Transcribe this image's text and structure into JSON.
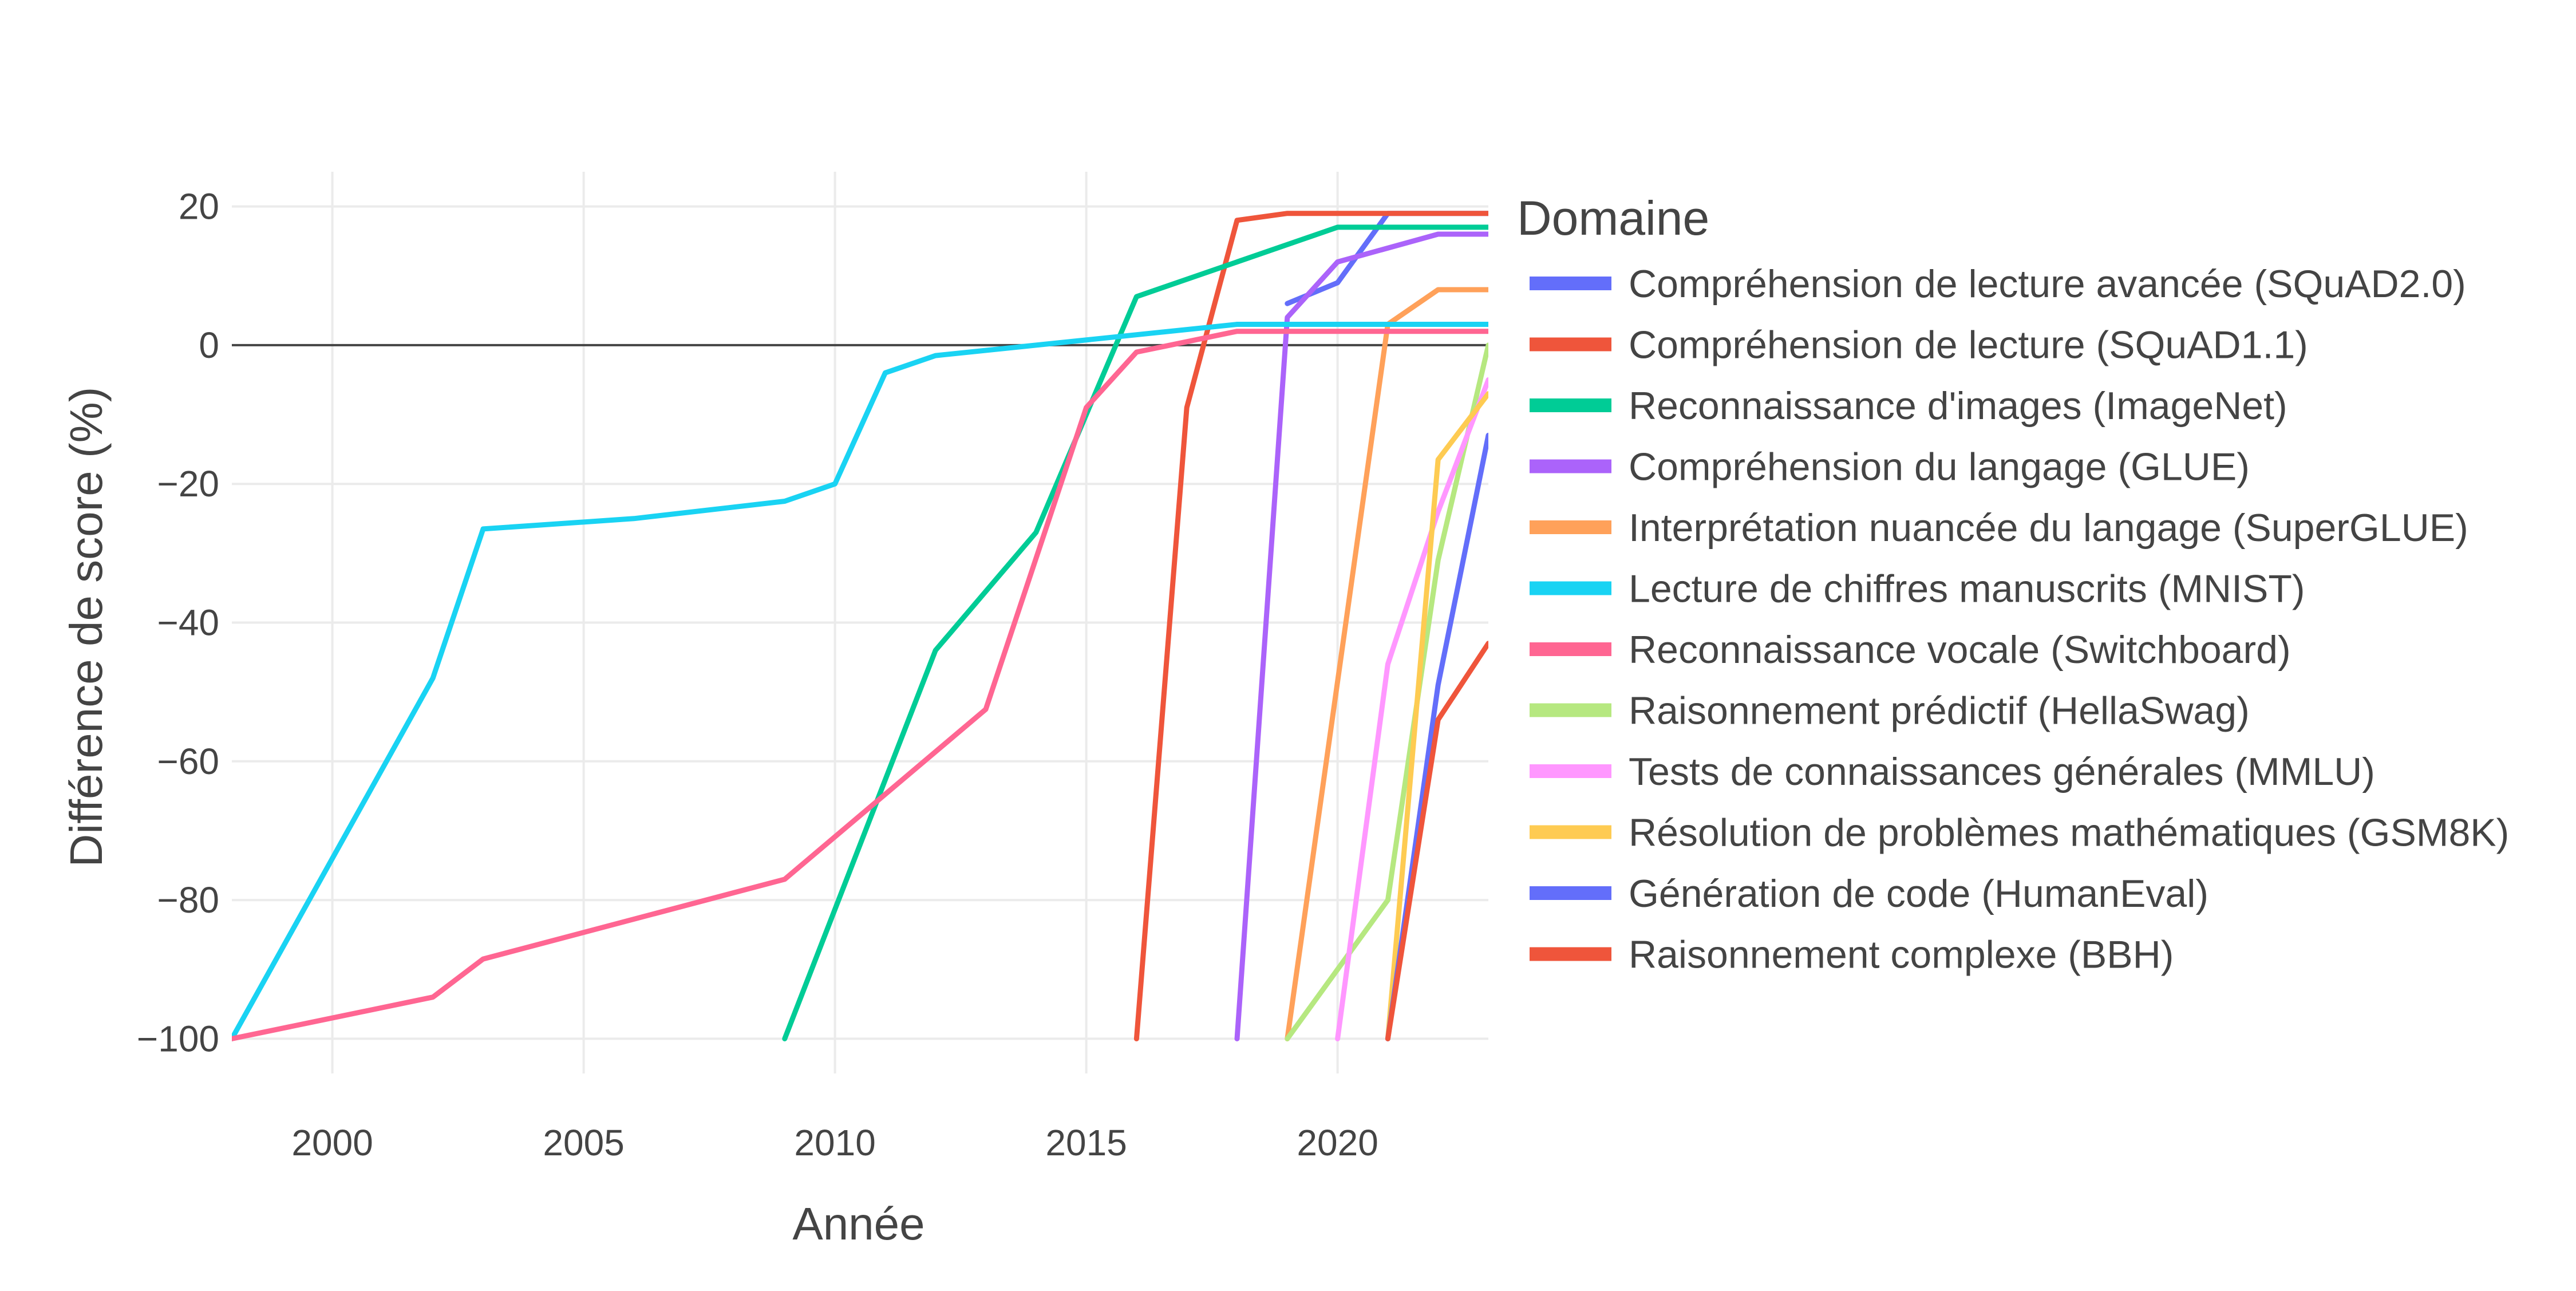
{
  "chart_data": {
    "type": "line",
    "title": "",
    "xlabel": "Année",
    "ylabel": "Différence de score (%)",
    "xlim": [
      1998,
      2023
    ],
    "ylim": [
      -105,
      25
    ],
    "x_ticks": [
      2000,
      2005,
      2010,
      2015,
      2020
    ],
    "y_ticks": [
      20,
      0,
      -20,
      -40,
      -60,
      -80,
      -100
    ],
    "y_tick_labels": [
      "20",
      "0",
      "−20",
      "−40",
      "−60",
      "−80",
      "−100"
    ],
    "zero_line": true,
    "grid": true,
    "legend": {
      "title": "Domaine",
      "placement": "right"
    },
    "series": [
      {
        "name": "Compréhension de lecture avancée (SQuAD2.0)",
        "color": "#636efa",
        "points": [
          [
            2019,
            6
          ],
          [
            2020,
            9
          ],
          [
            2021,
            19
          ],
          [
            2022,
            19
          ],
          [
            2023,
            19
          ]
        ]
      },
      {
        "name": "Compréhension de lecture (SQuAD1.1)",
        "color": "#ef553b",
        "points": [
          [
            2016,
            -100
          ],
          [
            2017,
            -9
          ],
          [
            2018,
            18
          ],
          [
            2019,
            19
          ],
          [
            2020,
            19
          ],
          [
            2021,
            19
          ],
          [
            2022,
            19
          ],
          [
            2023,
            19
          ]
        ]
      },
      {
        "name": "Reconnaissance d'images (ImageNet)",
        "color": "#00cc96",
        "points": [
          [
            2009,
            -100
          ],
          [
            2012,
            -44
          ],
          [
            2014,
            -27
          ],
          [
            2016,
            7
          ],
          [
            2020,
            17
          ],
          [
            2023,
            17
          ]
        ]
      },
      {
        "name": "Compréhension du langage (GLUE)",
        "color": "#ab63fa",
        "points": [
          [
            2018,
            -100
          ],
          [
            2019,
            4
          ],
          [
            2020,
            12
          ],
          [
            2022,
            16
          ],
          [
            2023,
            16
          ]
        ]
      },
      {
        "name": "Interprétation nuancée du langage (SuperGLUE)",
        "color": "#ffa15a",
        "points": [
          [
            2019,
            -100
          ],
          [
            2021,
            3
          ],
          [
            2022,
            8
          ],
          [
            2023,
            8
          ]
        ]
      },
      {
        "name": "Lecture de chiffres manuscrits (MNIST)",
        "color": "#19d3f3",
        "points": [
          [
            1998,
            -100
          ],
          [
            2002,
            -48
          ],
          [
            2003,
            -26.5
          ],
          [
            2006,
            -25
          ],
          [
            2009,
            -22.5
          ],
          [
            2010,
            -20
          ],
          [
            2011,
            -4
          ],
          [
            2012,
            -1.5
          ],
          [
            2014,
            0
          ],
          [
            2016,
            1.5
          ],
          [
            2018,
            3
          ],
          [
            2023,
            3
          ]
        ]
      },
      {
        "name": "Reconnaissance vocale (Switchboard)",
        "color": "#ff6692",
        "points": [
          [
            1998,
            -100
          ],
          [
            2002,
            -94
          ],
          [
            2003,
            -88.5
          ],
          [
            2009,
            -77
          ],
          [
            2013,
            -52.5
          ],
          [
            2015,
            -9
          ],
          [
            2016,
            -1
          ],
          [
            2018,
            2
          ],
          [
            2023,
            2
          ]
        ]
      },
      {
        "name": "Raisonnement prédictif (HellaSwag)",
        "color": "#b6e880",
        "points": [
          [
            2019,
            -100
          ],
          [
            2021,
            -80
          ],
          [
            2022,
            -31
          ],
          [
            2023,
            0
          ]
        ]
      },
      {
        "name": "Tests de connaissances générales (MMLU)",
        "color": "#ff97ff",
        "points": [
          [
            2020,
            -100
          ],
          [
            2021,
            -46
          ],
          [
            2022,
            -24
          ],
          [
            2023,
            -5
          ]
        ]
      },
      {
        "name": "Résolution de problèmes mathématiques (GSM8K)",
        "color": "#fecb52",
        "points": [
          [
            2021,
            -100
          ],
          [
            2022,
            -16.5
          ],
          [
            2023,
            -7
          ]
        ]
      },
      {
        "name": "Génération de code (HumanEval)",
        "color": "#636efa",
        "points": [
          [
            2021,
            -100
          ],
          [
            2022,
            -49
          ],
          [
            2023,
            -13
          ]
        ]
      },
      {
        "name": "Raisonnement complexe (BBH)",
        "color": "#ef553b",
        "points": [
          [
            2021,
            -100
          ],
          [
            2022,
            -54
          ],
          [
            2023,
            -43
          ]
        ]
      }
    ]
  }
}
